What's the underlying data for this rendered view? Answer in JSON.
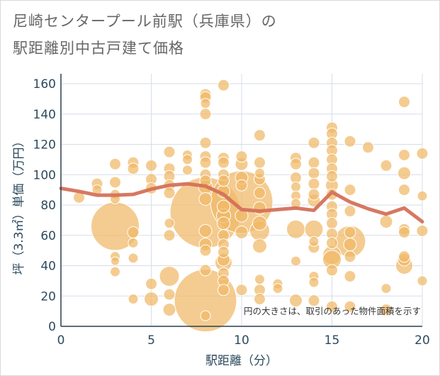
{
  "title_line1": "尼崎センタープール前駅（兵庫県）の",
  "title_line2": "駅距離別中古戸建て価格",
  "chart_data": {
    "type": "scatter",
    "title": "尼崎センタープール前駅（兵庫県）の 駅距離別中古戸建て価格",
    "xlabel": "駅距離（分）",
    "ylabel": "坪（3.3㎡）単価（万円）",
    "xlim": [
      0,
      20
    ],
    "ylim": [
      0,
      165
    ],
    "x_ticks": [
      0,
      5,
      10,
      15,
      20
    ],
    "y_ticks": [
      0,
      20,
      40,
      60,
      80,
      100,
      120,
      140,
      160
    ],
    "grid": true,
    "annotation": "円の大きさは、取引のあった物件面積を示す",
    "bubble_color": "#f0b866",
    "line_color": "#d4715a",
    "points": [
      [
        1,
        85,
        8
      ],
      [
        2,
        94,
        8
      ],
      [
        2,
        90,
        7
      ],
      [
        3,
        107,
        8
      ],
      [
        3,
        95,
        8
      ],
      [
        3,
        87,
        7
      ],
      [
        3,
        84,
        7
      ],
      [
        3,
        66,
        34
      ],
      [
        3,
        46,
        7
      ],
      [
        3,
        43,
        6
      ],
      [
        3,
        36,
        7
      ],
      [
        4,
        108,
        8
      ],
      [
        4,
        104,
        8
      ],
      [
        4,
        62,
        8
      ],
      [
        4,
        55,
        7
      ],
      [
        4,
        45,
        7
      ],
      [
        4,
        18,
        7
      ],
      [
        5,
        106,
        8
      ],
      [
        5,
        97,
        8
      ],
      [
        5,
        91,
        8
      ],
      [
        5,
        28,
        8
      ],
      [
        5,
        18,
        10
      ],
      [
        6,
        115,
        8
      ],
      [
        6,
        104,
        8
      ],
      [
        6,
        99,
        8
      ],
      [
        6,
        93,
        8
      ],
      [
        6,
        88,
        8
      ],
      [
        6,
        68,
        7
      ],
      [
        6,
        60,
        8
      ],
      [
        6,
        33,
        14
      ],
      [
        6,
        21,
        8
      ],
      [
        6,
        11,
        9
      ],
      [
        7,
        113,
        7
      ],
      [
        7,
        110,
        7
      ],
      [
        7,
        103,
        7
      ],
      [
        8,
        153,
        8
      ],
      [
        8,
        151,
        8
      ],
      [
        8,
        147,
        7
      ],
      [
        8,
        140,
        8
      ],
      [
        8,
        121,
        8
      ],
      [
        8,
        112,
        8
      ],
      [
        8,
        108,
        8
      ],
      [
        8,
        100,
        8
      ],
      [
        8,
        96,
        8
      ],
      [
        8,
        92,
        10
      ],
      [
        8,
        84,
        9
      ],
      [
        8,
        75,
        50
      ],
      [
        8,
        63,
        9
      ],
      [
        8,
        54,
        9
      ],
      [
        8,
        50,
        8
      ],
      [
        8,
        37,
        8
      ],
      [
        8,
        17,
        44
      ],
      [
        8,
        7,
        7
      ],
      [
        9,
        159,
        8
      ],
      [
        9,
        111,
        8
      ],
      [
        9,
        108,
        8
      ],
      [
        9,
        100,
        8
      ],
      [
        9,
        96,
        8
      ],
      [
        9,
        89,
        9
      ],
      [
        9,
        79,
        9
      ],
      [
        9,
        73,
        10
      ],
      [
        9,
        68,
        9
      ],
      [
        9,
        60,
        8
      ],
      [
        9,
        54,
        8
      ],
      [
        9,
        49,
        8
      ],
      [
        9,
        44,
        9
      ],
      [
        9,
        42,
        12
      ],
      [
        9,
        35,
        8
      ],
      [
        9,
        30,
        8
      ],
      [
        9,
        24,
        8
      ],
      [
        10,
        112,
        8
      ],
      [
        10,
        107,
        9
      ],
      [
        10,
        98,
        9
      ],
      [
        10,
        93,
        8
      ],
      [
        10,
        82,
        44
      ],
      [
        10,
        73,
        9
      ],
      [
        10,
        62,
        9
      ],
      [
        10,
        24,
        8
      ],
      [
        11,
        126,
        8
      ],
      [
        11,
        108,
        8
      ],
      [
        11,
        101,
        7
      ],
      [
        11,
        97,
        8
      ],
      [
        11,
        88,
        8
      ],
      [
        11,
        78,
        9
      ],
      [
        11,
        68,
        10
      ],
      [
        11,
        63,
        14
      ],
      [
        11,
        53,
        10
      ],
      [
        11,
        31,
        7
      ],
      [
        11,
        24,
        8
      ],
      [
        11,
        18,
        8
      ],
      [
        12,
        28,
        7
      ],
      [
        12,
        25,
        7
      ],
      [
        13,
        111,
        8
      ],
      [
        13,
        107,
        8
      ],
      [
        13,
        98,
        8
      ],
      [
        13,
        92,
        7
      ],
      [
        13,
        86,
        7
      ],
      [
        13,
        81,
        7
      ],
      [
        13,
        64,
        13
      ],
      [
        13,
        43,
        7
      ],
      [
        13,
        17,
        9
      ],
      [
        14,
        121,
        8
      ],
      [
        14,
        108,
        8
      ],
      [
        14,
        101,
        8
      ],
      [
        14,
        94,
        8
      ],
      [
        14,
        87,
        8
      ],
      [
        14,
        83,
        9
      ],
      [
        14,
        64,
        13
      ],
      [
        14,
        56,
        7
      ],
      [
        14,
        52,
        8
      ],
      [
        14,
        33,
        7
      ],
      [
        14,
        29,
        7
      ],
      [
        14,
        17,
        8
      ],
      [
        15,
        131,
        8
      ],
      [
        15,
        127,
        8
      ],
      [
        15,
        121,
        8
      ],
      [
        15,
        116,
        8
      ],
      [
        15,
        110,
        8
      ],
      [
        15,
        104,
        8
      ],
      [
        15,
        99,
        8
      ],
      [
        15,
        93,
        9
      ],
      [
        15,
        87,
        8
      ],
      [
        15,
        79,
        8
      ],
      [
        15,
        74,
        8
      ],
      [
        15,
        68,
        8
      ],
      [
        15,
        61,
        8
      ],
      [
        15,
        55,
        8
      ],
      [
        15,
        47,
        13
      ],
      [
        15,
        44,
        13
      ],
      [
        15,
        37,
        8
      ],
      [
        15,
        13,
        8
      ],
      [
        16,
        122,
        8
      ],
      [
        16,
        90,
        8
      ],
      [
        16,
        76,
        8
      ],
      [
        16,
        62,
        8
      ],
      [
        16,
        56,
        22
      ],
      [
        16,
        54,
        9
      ],
      [
        16,
        46,
        8
      ],
      [
        16,
        33,
        8
      ],
      [
        16,
        13,
        8
      ],
      [
        17,
        118,
        8
      ],
      [
        18,
        106,
        8
      ],
      [
        18,
        69,
        9
      ],
      [
        18,
        25,
        7
      ],
      [
        18,
        11,
        8
      ],
      [
        19,
        148,
        8
      ],
      [
        19,
        113,
        8
      ],
      [
        19,
        101,
        9
      ],
      [
        19,
        90,
        8
      ],
      [
        19,
        64,
        8
      ],
      [
        19,
        62,
        8
      ],
      [
        19,
        46,
        8
      ],
      [
        19,
        44,
        9
      ],
      [
        19,
        40,
        12
      ],
      [
        20,
        114,
        8
      ],
      [
        20,
        86,
        7
      ],
      [
        20,
        63,
        8
      ],
      [
        20,
        30,
        7
      ]
    ],
    "trend_line": [
      [
        0,
        91
      ],
      [
        1,
        89
      ],
      [
        2,
        86.5
      ],
      [
        3,
        86.5
      ],
      [
        4,
        87
      ],
      [
        5,
        90.5
      ],
      [
        6,
        93
      ],
      [
        7,
        94
      ],
      [
        8,
        92.5
      ],
      [
        9,
        87
      ],
      [
        10,
        77
      ],
      [
        11,
        76
      ],
      [
        12,
        77
      ],
      [
        13,
        78
      ],
      [
        14,
        76.5
      ],
      [
        15,
        88.5
      ],
      [
        16,
        82
      ],
      [
        17,
        77.5
      ],
      [
        18,
        74
      ],
      [
        19,
        78
      ],
      [
        20,
        69
      ]
    ]
  }
}
